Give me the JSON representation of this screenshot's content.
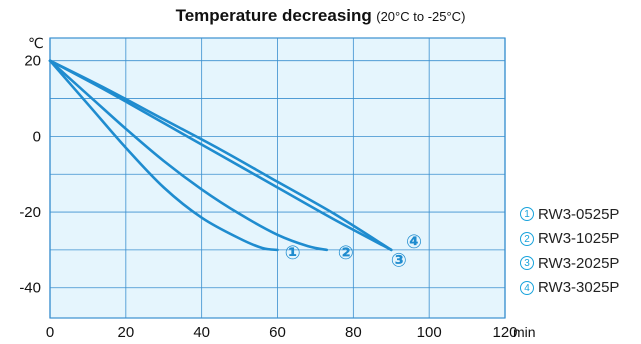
{
  "header": {
    "title": "Temperature decreasing",
    "subtitle": "(20°C to -25°C)"
  },
  "colors": {
    "plot_background": "#e5f5fd",
    "grid": "#3a8fcf",
    "line": "#1f8ccf",
    "marker_text": "#1f8ccf",
    "legend_accent": "#19a3dc"
  },
  "chart_data": {
    "type": "line",
    "title": "Temperature decreasing",
    "subtitle": "(20°C to -25°C)",
    "xlabel": "",
    "x_unit": "min",
    "ylabel": "",
    "y_unit": "℃",
    "xlim": [
      0,
      120
    ],
    "ylim": [
      -48,
      26
    ],
    "x_ticks": [
      0,
      20,
      40,
      60,
      80,
      100,
      120
    ],
    "y_ticks": [
      20,
      0,
      -20,
      -40
    ],
    "grid": true,
    "legend_position": "right",
    "series": [
      {
        "name": "RW3-0525P",
        "marker": "①",
        "end_label_x": 64,
        "end_label_y": -31,
        "points": [
          [
            0,
            20
          ],
          [
            10,
            8.5
          ],
          [
            20,
            -3
          ],
          [
            30,
            -13.5
          ],
          [
            40,
            -21.5
          ],
          [
            50,
            -27
          ],
          [
            56,
            -29.5
          ],
          [
            60,
            -30
          ]
        ]
      },
      {
        "name": "RW3-1025P",
        "marker": "②",
        "end_label_x": 78,
        "end_label_y": -31,
        "points": [
          [
            0,
            20
          ],
          [
            10,
            11
          ],
          [
            20,
            2
          ],
          [
            30,
            -6.5
          ],
          [
            40,
            -14
          ],
          [
            50,
            -20.5
          ],
          [
            60,
            -26
          ],
          [
            68,
            -29
          ],
          [
            73,
            -30
          ]
        ]
      },
      {
        "name": "RW3-2025P",
        "marker": "③",
        "end_label_x": 92,
        "end_label_y": -33,
        "points": [
          [
            0,
            20
          ],
          [
            15,
            12
          ],
          [
            30,
            3.5
          ],
          [
            45,
            -5
          ],
          [
            60,
            -13.5
          ],
          [
            75,
            -22
          ],
          [
            90,
            -30
          ]
        ]
      },
      {
        "name": "RW3-3025P",
        "marker": "④",
        "end_label_x": 96,
        "end_label_y": -28,
        "points": [
          [
            0,
            20
          ],
          [
            15,
            12.5
          ],
          [
            30,
            4.5
          ],
          [
            45,
            -3.5
          ],
          [
            60,
            -12
          ],
          [
            75,
            -20.5
          ],
          [
            90,
            -30
          ]
        ]
      }
    ]
  },
  "legend": {
    "items": [
      {
        "marker": "1",
        "label": "RW3-0525P"
      },
      {
        "marker": "2",
        "label": "RW3-1025P"
      },
      {
        "marker": "3",
        "label": "RW3-2025P"
      },
      {
        "marker": "4",
        "label": "RW3-3025P"
      }
    ]
  }
}
